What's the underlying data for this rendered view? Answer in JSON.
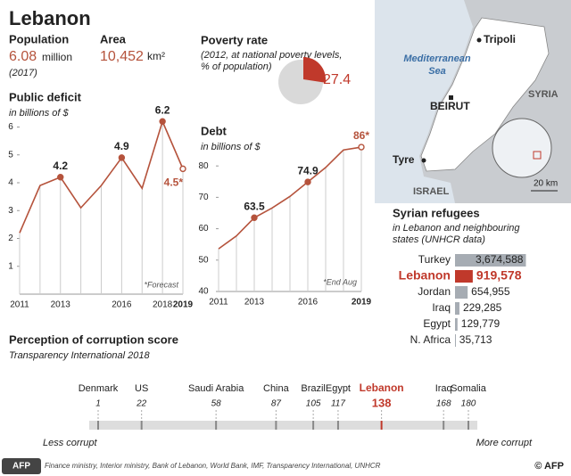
{
  "title": "Lebanon",
  "stats": [
    {
      "label": "Population",
      "value": "6.08",
      "unit": "million",
      "note": "(2017)"
    },
    {
      "label": "Area",
      "value": "10,452",
      "unit": "km²"
    }
  ],
  "map": {
    "sea": [
      "Mediterranean",
      "Sea"
    ],
    "places": [
      "Tripoli",
      "BEIRUT",
      "Tyre"
    ],
    "countries": [
      "SYRIA",
      "ISRAEL"
    ],
    "scale": "20 km"
  },
  "source": "Finance ministry, Interior ministry, Bank of Lebanon, World Bank, IMF, Transparency International, UNHCR",
  "credit": "© AFP",
  "logo": "AFP",
  "chart_data": [
    {
      "type": "pie",
      "title": "Poverty rate",
      "subtitle": [
        "(2012, at national poverty levels,",
        "% of population)"
      ],
      "values": [
        27.4
      ],
      "color": "#c0392b",
      "rest_color": "#d9d9d9"
    },
    {
      "type": "line",
      "title": "Public deficit",
      "subtitle": "in billions of $",
      "x": [
        2011,
        2012,
        2013,
        2014,
        2015,
        2016,
        2017,
        2018,
        2019
      ],
      "values": [
        2.2,
        3.9,
        4.2,
        3.1,
        3.9,
        4.9,
        3.8,
        6.2,
        4.5
      ],
      "value_labels": [
        null,
        null,
        "4.2",
        null,
        null,
        "4.9",
        null,
        "6.2",
        "4.5*"
      ],
      "xlim": [
        2011,
        2019
      ],
      "xticks": [
        2011,
        2013,
        2016,
        2018,
        2019
      ],
      "ylim": [
        0,
        6.4
      ],
      "yticks": [
        1,
        2,
        3,
        4,
        5,
        6
      ],
      "color": "#b5533c",
      "annotation": "*Forecast"
    },
    {
      "type": "line",
      "title": "Debt",
      "subtitle": "in billions of $",
      "x": [
        2011,
        2012,
        2013,
        2014,
        2015,
        2016,
        2017,
        2018,
        2019
      ],
      "values": [
        53.6,
        57.7,
        63.5,
        66.6,
        70.3,
        74.9,
        79.5,
        85.1,
        86
      ],
      "value_labels": [
        null,
        null,
        "63.5",
        null,
        null,
        "74.9",
        null,
        null,
        "86*"
      ],
      "xlim": [
        2011,
        2019
      ],
      "xticks": [
        2011,
        2013,
        2016,
        2019
      ],
      "ylim": [
        40,
        88
      ],
      "yticks": [
        40,
        50,
        60,
        70,
        80
      ],
      "color": "#b5533c",
      "annotation": "*End Aug"
    },
    {
      "type": "hbar",
      "title": "Syrian refugees",
      "subtitle": [
        "in Lebanon and neighbouring",
        "states (UNHCR data)"
      ],
      "categories": [
        "Turkey",
        "Lebanon",
        "Jordan",
        "Iraq",
        "Egypt",
        "N. Africa"
      ],
      "values": [
        3674588,
        919578,
        654955,
        229285,
        129779,
        35713
      ],
      "value_labels": [
        "3,674,588",
        "919,578",
        "654,955",
        "229,285",
        "129,779",
        "35,713"
      ],
      "colors": [
        "#a6acb3",
        "#c0392b",
        "#a6acb3",
        "#a6acb3",
        "#a6acb3",
        "#a6acb3"
      ],
      "highlight": 1,
      "xlim": [
        0,
        3700000
      ]
    },
    {
      "type": "scale",
      "title": "Perception of corruption score",
      "subtitle": "Transparency International 2018",
      "categories": [
        "Denmark",
        "US",
        "Saudi Arabia",
        "China",
        "Brazil",
        "Egypt",
        "Lebanon",
        "Iraq",
        "Somalia"
      ],
      "values": [
        1,
        22,
        58,
        87,
        105,
        117,
        138,
        168,
        180
      ],
      "xlim": [
        1,
        180
      ],
      "highlight": 6,
      "color": "#c0392b",
      "ends": [
        "Less corrupt",
        "More corrupt"
      ]
    }
  ]
}
